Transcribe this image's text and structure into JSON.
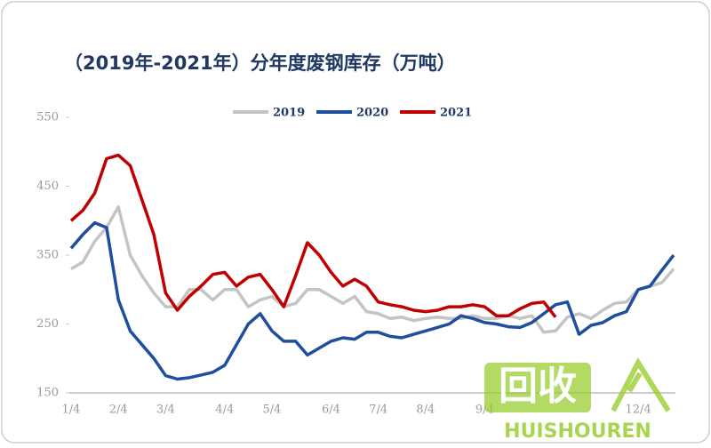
{
  "chart_data": {
    "type": "line",
    "title": "（2019年-2021年）分年度废钢库存（万吨）",
    "categories": [
      "1/4",
      null,
      null,
      null,
      "2/4",
      null,
      null,
      null,
      "3/4",
      null,
      null,
      null,
      null,
      "4/4",
      null,
      null,
      null,
      "5/4",
      null,
      null,
      null,
      null,
      "6/4",
      null,
      null,
      null,
      "7/4",
      null,
      null,
      null,
      "8/4",
      null,
      null,
      null,
      null,
      "9/4",
      null,
      null,
      null,
      null,
      null,
      null,
      null,
      null,
      null,
      null,
      null,
      null,
      "12/4",
      null,
      null,
      null
    ],
    "series": [
      {
        "name": "2019",
        "color": "#c4c4c4",
        "values": [
          330,
          340,
          370,
          390,
          420,
          350,
          320,
          295,
          275,
          275,
          300,
          300,
          285,
          300,
          300,
          275,
          285,
          290,
          275,
          280,
          300,
          300,
          290,
          280,
          290,
          268,
          265,
          258,
          260,
          255,
          258,
          260,
          258,
          258,
          262,
          258,
          258,
          262,
          258,
          262,
          238,
          240,
          260,
          265,
          258,
          270,
          280,
          282,
          300,
          305,
          310,
          330
        ]
      },
      {
        "name": "2020",
        "color": "#1f4e9c",
        "values": [
          360,
          380,
          397,
          390,
          285,
          240,
          220,
          200,
          175,
          170,
          172,
          176,
          180,
          190,
          220,
          250,
          265,
          240,
          225,
          225,
          205,
          215,
          225,
          230,
          228,
          238,
          238,
          232,
          230,
          235,
          240,
          245,
          250,
          262,
          258,
          252,
          250,
          246,
          245,
          252,
          265,
          278,
          282,
          235,
          248,
          252,
          262,
          268,
          300,
          305,
          328,
          350
        ]
      },
      {
        "name": "2021",
        "color": "#c00000",
        "values": [
          400,
          415,
          440,
          490,
          495,
          480,
          430,
          380,
          295,
          270,
          290,
          305,
          322,
          325,
          305,
          318,
          322,
          300,
          275,
          320,
          368,
          350,
          325,
          305,
          315,
          305,
          282,
          278,
          275,
          270,
          268,
          270,
          275,
          275,
          278,
          275,
          262,
          262,
          272,
          280,
          282,
          260,
          null,
          null,
          null,
          null,
          null,
          null,
          null,
          null,
          null,
          null
        ]
      }
    ],
    "ylim": [
      150,
      550
    ],
    "yticks": [
      150,
      250,
      350,
      450,
      550
    ],
    "legend": "top",
    "grid": false,
    "watermark": {
      "logo": "回收",
      "text": "HUISHOUREN"
    }
  }
}
